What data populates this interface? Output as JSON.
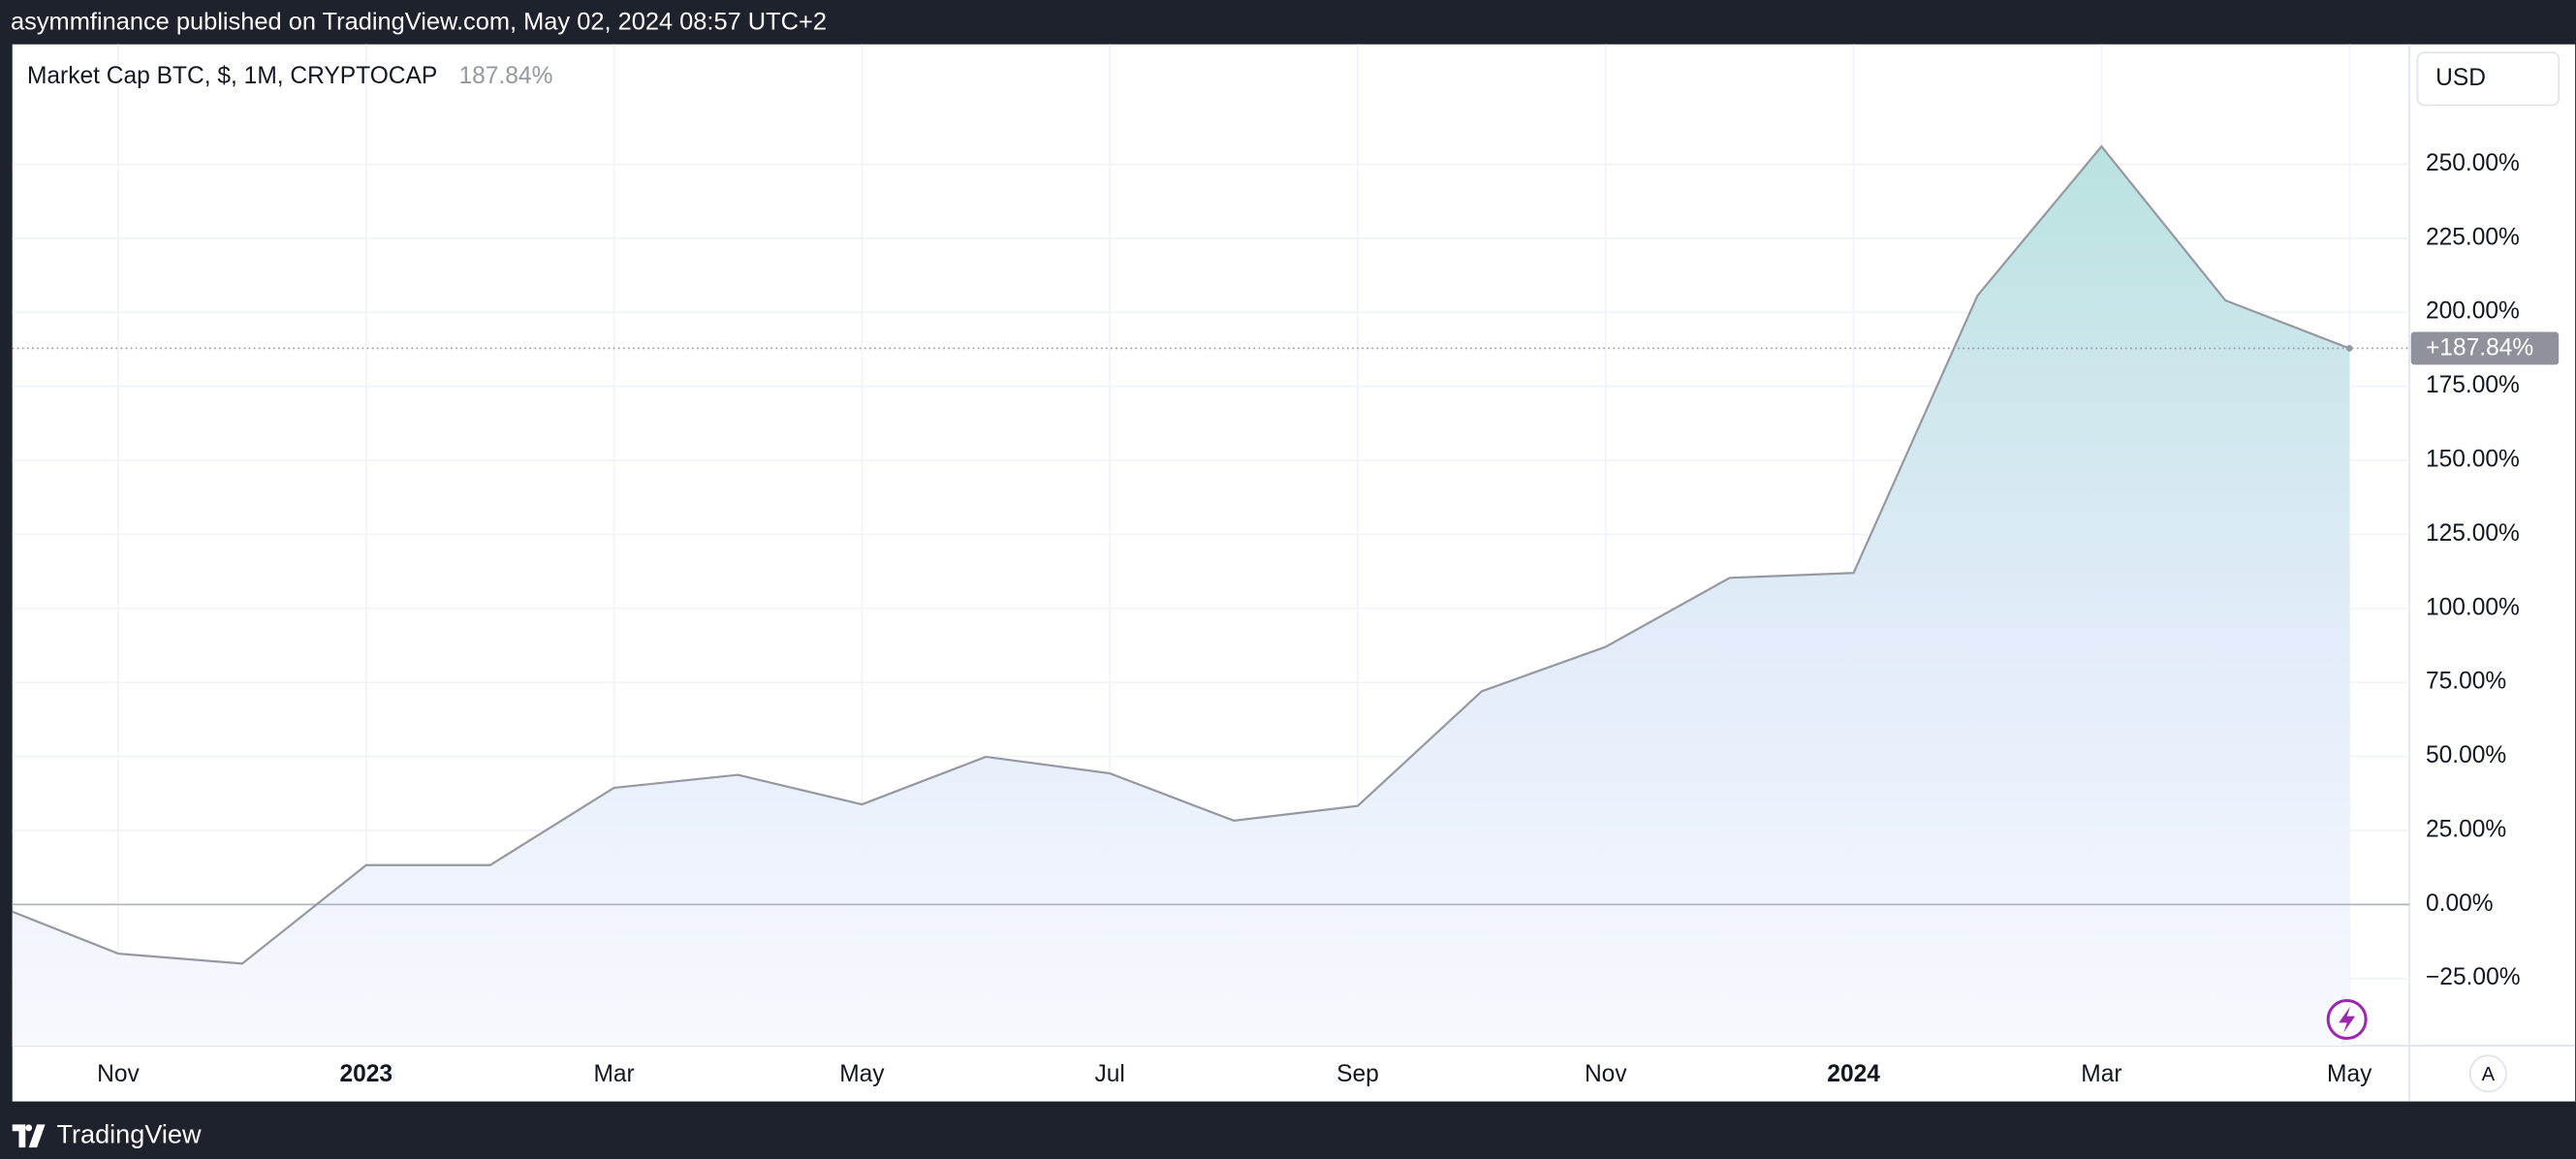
{
  "header": {
    "text": "asymmfinance published on TradingView.com, May 02, 2024 08:57 UTC+2"
  },
  "footer": {
    "brand": "TradingView"
  },
  "chart_data": {
    "type": "area",
    "title": "Market Cap BTC, $, 1M, CRYPTOCAP",
    "legend_label": "187.84%",
    "last_label": "+187.84%",
    "currency": "USD",
    "scale_button": "A",
    "color": "#9598a1",
    "x": [
      "2022-10",
      "2022-11",
      "2022-12",
      "2023-01",
      "2023-02",
      "2023-03",
      "2023-04",
      "2023-05",
      "2023-06",
      "2023-07",
      "2023-08",
      "2023-09",
      "2023-10",
      "2023-11",
      "2023-12",
      "2024-01",
      "2024-02",
      "2024-03",
      "2024-04",
      "2024-05"
    ],
    "values": [
      0,
      -16.6,
      -20,
      13.3,
      13.3,
      39.4,
      43.8,
      33.8,
      49.9,
      44.3,
      28.3,
      33.3,
      72,
      87,
      110.3,
      112,
      205.7,
      256,
      204,
      187.84
    ],
    "xticks": [
      {
        "value": "2022-11",
        "label": "Nov"
      },
      {
        "value": "2023-01",
        "label": "2023"
      },
      {
        "value": "2023-03",
        "label": "Mar"
      },
      {
        "value": "2023-05",
        "label": "May"
      },
      {
        "value": "2023-07",
        "label": "Jul"
      },
      {
        "value": "2023-09",
        "label": "Sep"
      },
      {
        "value": "2023-11",
        "label": "Nov"
      },
      {
        "value": "2024-01",
        "label": "2024"
      },
      {
        "value": "2024-03",
        "label": "Mar"
      },
      {
        "value": "2024-05",
        "label": "May"
      }
    ],
    "ylim": [
      -47.7,
      290.5
    ],
    "yticks": [
      {
        "value": -25,
        "label": "−25.00%"
      },
      {
        "value": 0,
        "label": "0.00%"
      },
      {
        "value": 25,
        "label": "25.00%"
      },
      {
        "value": 50,
        "label": "50.00%"
      },
      {
        "value": 75,
        "label": "75.00%"
      },
      {
        "value": 100,
        "label": "100.00%"
      },
      {
        "value": 125,
        "label": "125.00%"
      },
      {
        "value": 150,
        "label": "150.00%"
      },
      {
        "value": 175,
        "label": "175.00%"
      },
      {
        "value": 200,
        "label": "200.00%"
      },
      {
        "value": 225,
        "label": "225.00%"
      },
      {
        "value": 250,
        "label": "250.00%"
      }
    ],
    "grid": true
  }
}
